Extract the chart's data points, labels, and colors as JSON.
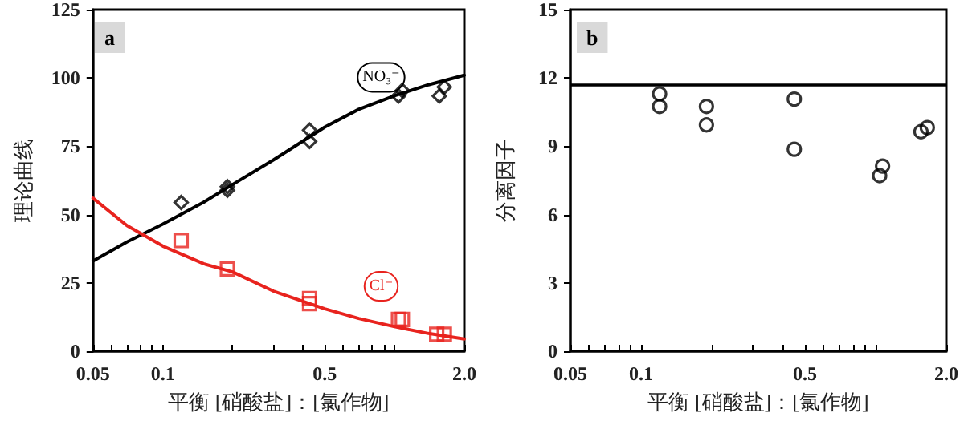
{
  "chart_data": [
    {
      "type": "scatter",
      "xlabel": "平衡 [硝酸盐]：[氯作物]",
      "ylabel": "理论曲线",
      "annotations": [
        "a"
      ],
      "log": "x",
      "grid": false,
      "legend": false,
      "xlim": [
        0.05,
        2.0
      ],
      "xticks": [
        0.05,
        {
          "value": 0.06,
          "label": null
        },
        {
          "value": 0.07,
          "label": null
        },
        {
          "value": 0.08,
          "label": null
        },
        {
          "value": 0.09,
          "label": null
        },
        0.1,
        {
          "value": 0.2,
          "label": null
        },
        {
          "value": 0.3,
          "label": null
        },
        {
          "value": 0.4,
          "label": null
        },
        0.5,
        {
          "value": 0.6,
          "label": null
        },
        {
          "value": 0.7,
          "label": null
        },
        {
          "value": 0.8,
          "label": null
        },
        {
          "value": 0.9,
          "label": null
        },
        {
          "value": 1.0,
          "label": null
        },
        {
          "value": 2.0,
          "label": "2.0"
        }
      ],
      "ylim": [
        0,
        125
      ],
      "yticks": [
        0,
        25,
        50,
        75,
        100,
        125
      ],
      "series": [
        {
          "type": "scatter",
          "marker": "diamond",
          "color": "#000000",
          "x": [
            0.12,
            0.19,
            0.19,
            0.43,
            0.43,
            1.04,
            1.08,
            1.56,
            1.64
          ],
          "values": [
            54.4,
            60.2,
            58.9,
            80.9,
            76.8,
            93.4,
            95.4,
            93.4,
            96.7
          ]
        },
        {
          "type": "scatter",
          "marker": "square",
          "color": "#e8231e",
          "x": [
            0.12,
            0.19,
            0.43,
            0.43,
            1.04,
            1.08,
            1.52,
            1.64
          ],
          "values": [
            40.5,
            30.1,
            19.3,
            17.4,
            11.6,
            11.6,
            6.2,
            6.2
          ]
        },
        {
          "type": "line",
          "name": "NO₃⁻",
          "marker": "none",
          "color": "#000000",
          "x": [
            0.05,
            0.07,
            0.1,
            0.15,
            0.2,
            0.3,
            0.5,
            0.7,
            1.0,
            1.4,
            2.0
          ],
          "values": [
            33,
            40,
            46.5,
            54.5,
            61,
            70,
            82,
            88.5,
            93.5,
            97.5,
            101
          ]
        },
        {
          "type": "line",
          "name": "Cl⁻",
          "marker": "none",
          "color": "#e8231e",
          "x": [
            0.05,
            0.07,
            0.1,
            0.15,
            0.2,
            0.3,
            0.5,
            0.7,
            1.0,
            1.4,
            2.0
          ],
          "values": [
            56,
            46,
            38.5,
            32,
            29,
            22,
            15.5,
            12,
            9,
            6.5,
            4.5
          ]
        }
      ]
    },
    {
      "type": "scatter",
      "xlabel": "平衡 [硝酸盐]：[氯作物]",
      "ylabel": "分离因子",
      "annotations": [
        "b"
      ],
      "log": "x",
      "grid": false,
      "legend": false,
      "xlim": [
        0.05,
        2.0
      ],
      "xticks": [
        0.05,
        {
          "value": 0.06,
          "label": null
        },
        {
          "value": 0.07,
          "label": null
        },
        {
          "value": 0.08,
          "label": null
        },
        {
          "value": 0.09,
          "label": null
        },
        0.1,
        {
          "value": 0.2,
          "label": null
        },
        {
          "value": 0.3,
          "label": null
        },
        {
          "value": 0.4,
          "label": null
        },
        0.5,
        {
          "value": 0.6,
          "label": null
        },
        {
          "value": 0.7,
          "label": null
        },
        {
          "value": 0.8,
          "label": null
        },
        {
          "value": 0.9,
          "label": null
        },
        {
          "value": 1.0,
          "label": null
        },
        {
          "value": 2.0,
          "label": "2.0"
        }
      ],
      "ylim": [
        0,
        15
      ],
      "yticks": [
        0,
        3,
        6,
        9,
        12,
        15
      ],
      "ref_lines": [
        {
          "axis": "y",
          "value": 11.7,
          "color": "#000000"
        }
      ],
      "series": [
        {
          "type": "scatter",
          "marker": "circle",
          "color": "#000000",
          "x": [
            0.12,
            0.12,
            0.19,
            0.19,
            0.45,
            0.45,
            1.04,
            1.07,
            1.56,
            1.66
          ],
          "values": [
            11.3,
            10.75,
            10.75,
            9.94,
            11.07,
            8.87,
            7.71,
            8.13,
            9.64,
            9.82
          ]
        }
      ]
    }
  ]
}
